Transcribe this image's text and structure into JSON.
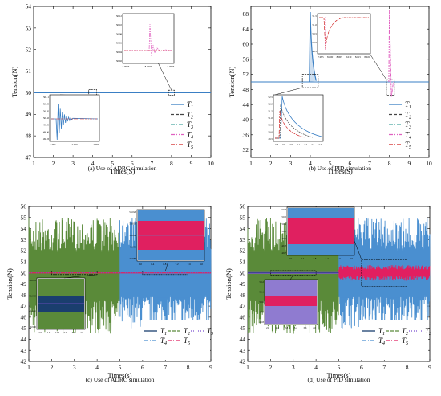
{
  "chart_data": [
    {
      "id": "a",
      "type": "line",
      "caption": "(a) Use of ADRC simulation",
      "xlabel": "Times(S)",
      "ylabel": "Tension(N)",
      "xlim": [
        1,
        10
      ],
      "ylim": [
        47,
        54
      ],
      "xticks": [
        "1",
        "2",
        "3",
        "4",
        "5",
        "6",
        "7",
        "8",
        "9",
        "10"
      ],
      "yticks": [
        "47",
        "48",
        "49",
        "50",
        "51",
        "52",
        "53",
        "54"
      ],
      "grid": false,
      "legend_position": "right",
      "series": [
        {
          "name": "T1",
          "color": "#3a7fc4",
          "style": "solid"
        },
        {
          "name": "T2",
          "color": "#444444",
          "style": "dash"
        },
        {
          "name": "T3",
          "color": "#4aa8a0",
          "style": "dashdot"
        },
        {
          "name": "T4",
          "color": "#e060c0",
          "style": "dashdotdot"
        },
        {
          "name": "T5",
          "color": "#d02020",
          "style": "dashdot"
        }
      ],
      "steady_value": 50,
      "insets": [
        {
          "position": "lower-left",
          "xticks": [
            "3.995",
            "4.000",
            "4.005"
          ],
          "yticks": [
            "49.93",
            "49.96",
            "49.99",
            "50.02",
            "50.05",
            "50.08",
            "50.11"
          ]
        },
        {
          "position": "top-center",
          "xticks": [
            "7.9995",
            "8.0000",
            "8.0005"
          ],
          "yticks": [
            "50.02",
            "50.04",
            "50.06",
            "50.08",
            "50.10",
            "50.12"
          ]
        }
      ]
    },
    {
      "id": "b",
      "type": "line",
      "caption": "(b) Use of PID simulation",
      "xlabel": "Times(S)",
      "ylabel": "Tension(N)",
      "xlim": [
        1,
        10
      ],
      "ylim": [
        30,
        70
      ],
      "xticks": [
        "1",
        "2",
        "3",
        "4",
        "5",
        "6",
        "7",
        "8",
        "9",
        "10"
      ],
      "yticks": [
        "32",
        "36",
        "40",
        "44",
        "48",
        "52",
        "56",
        "60",
        "64",
        "68"
      ],
      "grid": false,
      "legend_position": "right",
      "series": [
        {
          "name": "T1",
          "color": "#3a7fc4",
          "style": "solid"
        },
        {
          "name": "T2",
          "color": "#444444",
          "style": "dash"
        },
        {
          "name": "T3",
          "color": "#4aa8a0",
          "style": "dashdot"
        },
        {
          "name": "T4",
          "color": "#e060c0",
          "style": "dashdotdot"
        },
        {
          "name": "T5",
          "color": "#d02020",
          "style": "dashdot"
        }
      ],
      "steady_value": 50,
      "peaks": [
        {
          "series": "T1",
          "x": 4.0,
          "y": 68.5
        },
        {
          "series": "T4",
          "x": 8.0,
          "y": 69
        }
      ],
      "insets": [
        {
          "position": "lower-left",
          "xticks": [
            "3.8",
            "3.9",
            "4.0",
            "4.1",
            "4.2",
            "4.3",
            "4.4"
          ],
          "yticks": [
            "49.5",
            "50.0",
            "50.5",
            "51.0",
            "51.5",
            "52.0",
            "52.5"
          ]
        },
        {
          "position": "top-center",
          "xticks": [
            "7.995",
            "8.000",
            "8.005",
            "8.010",
            "8.015",
            "8.020"
          ],
          "yticks": [
            "49.5",
            "50.0",
            "50.5",
            "51.0",
            "51.5"
          ]
        }
      ]
    },
    {
      "id": "c",
      "type": "line",
      "caption": "(c) Use of ADRC simulation",
      "xlabel": "Times(s)",
      "ylabel": "Tension(N)",
      "xlim": [
        1,
        9
      ],
      "ylim": [
        42,
        56
      ],
      "xticks": [
        "1",
        "2",
        "3",
        "4",
        "5",
        "6",
        "7",
        "8",
        "9"
      ],
      "yticks": [
        "42",
        "43",
        "44",
        "45",
        "46",
        "47",
        "48",
        "49",
        "50",
        "51",
        "52",
        "53",
        "54",
        "55",
        "56"
      ],
      "grid": false,
      "legend_position": "bottom-right",
      "series": [
        {
          "name": "T1",
          "color": "#1a3e6e",
          "style": "solid"
        },
        {
          "name": "T2",
          "color": "#5a8a3a",
          "style": "dash"
        },
        {
          "name": "T3",
          "color": "#7b4fd0",
          "style": "dot"
        },
        {
          "name": "T4",
          "color": "#4a8fd0",
          "style": "dashdot"
        },
        {
          "name": "T5",
          "color": "#e02060",
          "style": "dashdot"
        }
      ],
      "noise_bands": [
        {
          "series": "T2",
          "x": [
            1,
            5
          ],
          "y": [
            44.5,
            55
          ]
        },
        {
          "series": "T4",
          "x": [
            5,
            9
          ],
          "y": [
            45,
            55
          ]
        }
      ],
      "steady_value": 50,
      "insets": [
        {
          "position": "lower-left",
          "xticks": [
            "2.0",
            "2.4",
            "2.8",
            "3.2",
            "3.6",
            "4.0"
          ],
          "yticks": [
            "49.990",
            "49.995",
            "50.000",
            "50.005"
          ]
        },
        {
          "position": "upper-right",
          "xticks": [
            "6.0",
            "6.4",
            "6.8",
            "7.2",
            "7.6",
            "8.0"
          ],
          "yticks": [
            "49.980",
            "49.990",
            "50.000",
            "50.010",
            "50.020"
          ]
        }
      ]
    },
    {
      "id": "d",
      "type": "line",
      "caption": "(d) Use of PID simulation",
      "xlabel": "Times(s)",
      "ylabel": "Tension(N)",
      "xlim": [
        1,
        9
      ],
      "ylim": [
        42,
        56
      ],
      "xticks": [
        "1",
        "2",
        "3",
        "4",
        "5",
        "6",
        "7",
        "8",
        "9"
      ],
      "yticks": [
        "42",
        "43",
        "44",
        "45",
        "46",
        "47",
        "48",
        "49",
        "50",
        "51",
        "52",
        "53",
        "54",
        "55",
        "56"
      ],
      "grid": false,
      "legend_position": "bottom-right",
      "series": [
        {
          "name": "T1",
          "color": "#1a3e6e",
          "style": "solid"
        },
        {
          "name": "T2",
          "color": "#5a8a3a",
          "style": "dash"
        },
        {
          "name": "T3",
          "color": "#7b4fd0",
          "style": "dot"
        },
        {
          "name": "T4",
          "color": "#4a8fd0",
          "style": "dashdot"
        },
        {
          "name": "T5",
          "color": "#e02060",
          "style": "dashdot"
        }
      ],
      "noise_bands": [
        {
          "series": "T2",
          "x": [
            1,
            5
          ],
          "y": [
            44.5,
            55
          ]
        },
        {
          "series": "T4",
          "x": [
            5,
            9
          ],
          "y": [
            45,
            55
          ]
        },
        {
          "series": "T5",
          "x": [
            5,
            9
          ],
          "y": [
            49.3,
            50.7
          ]
        }
      ],
      "steady_value": 50,
      "insets": [
        {
          "position": "upper-left",
          "xticks": [
            "2.0",
            "2.4",
            "2.8",
            "3.2",
            "3.6",
            "4.0"
          ],
          "yticks": [
            "49.7",
            "49.8",
            "49.9",
            "50.0",
            "50.1",
            "50.2",
            "50.3"
          ]
        },
        {
          "position": "lower-left",
          "xticks": [
            "2.0",
            "2.4",
            "2.8",
            "3.2",
            "3.6",
            "4.0"
          ],
          "yticks": [
            "49.8",
            "49.9",
            "50.0",
            "50.1",
            "50.2"
          ]
        }
      ]
    }
  ]
}
